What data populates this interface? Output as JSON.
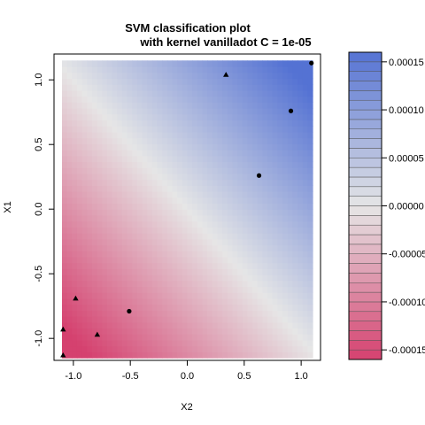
{
  "chart_data": {
    "type": "heatmap",
    "title_lines": [
      "SVM classification plot",
      "with kernel vanilladot C = 1e-05"
    ],
    "xlabel": "X2",
    "ylabel": "X1",
    "xlim": [
      -1.17,
      1.17
    ],
    "ylim": [
      -1.17,
      1.2
    ],
    "x_ticks": [
      {
        "value": -1.0,
        "label": "-1.0"
      },
      {
        "value": -0.5,
        "label": "-0.5"
      },
      {
        "value": 0.0,
        "label": "0.0"
      },
      {
        "value": 0.5,
        "label": "0.5"
      },
      {
        "value": 1.0,
        "label": "1.0"
      }
    ],
    "y_ticks": [
      {
        "value": -1.0,
        "label": "-1.0"
      },
      {
        "value": -0.5,
        "label": "-0.5"
      },
      {
        "value": 0.0,
        "label": "0.0"
      },
      {
        "value": 0.5,
        "label": "0.5"
      },
      {
        "value": 1.0,
        "label": "1.0"
      }
    ],
    "decision_surface": {
      "plane": {
        "intercept": 0.0,
        "coef_x": 8e-05,
        "coef_y": 8e-05
      },
      "data_range_x": [
        -1.1,
        1.1
      ],
      "data_range_y": [
        -1.15,
        1.15
      ]
    },
    "colors": {
      "negative": "#d5416f",
      "neutral": "#e6e6e6",
      "positive": "#5472d3",
      "point": "#000000",
      "frame": "#000000"
    },
    "colorbar": {
      "min": -0.00016,
      "max": 0.00016,
      "levels": 32,
      "ticks": [
        {
          "value": 0.00015,
          "label": "0.00015"
        },
        {
          "value": 0.0001,
          "label": "0.00010"
        },
        {
          "value": 5e-05,
          "label": "0.00005"
        },
        {
          "value": 0.0,
          "label": "0.00000"
        },
        {
          "value": -5e-05,
          "label": "-0.00005"
        },
        {
          "value": -0.0001,
          "label": "-0.00010"
        },
        {
          "value": -0.00015,
          "label": "-0.00015"
        }
      ]
    },
    "points": [
      {
        "x": 1.09,
        "y": 1.13,
        "marker": "circle"
      },
      {
        "x": 0.91,
        "y": 0.76,
        "marker": "circle"
      },
      {
        "x": 0.63,
        "y": 0.26,
        "marker": "circle"
      },
      {
        "x": -0.51,
        "y": -0.79,
        "marker": "circle"
      },
      {
        "x": 0.34,
        "y": 1.04,
        "marker": "triangle"
      },
      {
        "x": -0.98,
        "y": -0.69,
        "marker": "triangle"
      },
      {
        "x": -1.09,
        "y": -0.93,
        "marker": "triangle"
      },
      {
        "x": -0.79,
        "y": -0.97,
        "marker": "triangle"
      },
      {
        "x": -1.09,
        "y": -1.13,
        "marker": "triangle"
      }
    ]
  }
}
